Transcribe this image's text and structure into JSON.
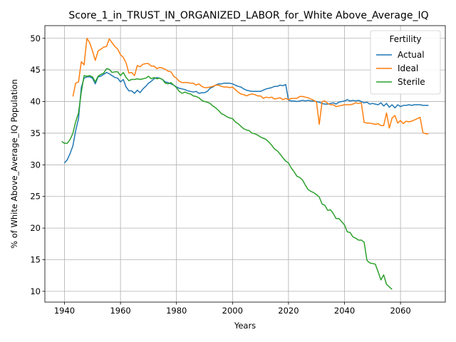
{
  "chart_data": {
    "type": "line",
    "title": "Score_1_in_TRUST_IN_ORGANIZED_LABOR_for_White Above_Average_IQ",
    "xlabel": "Years",
    "ylabel": "% of White Above_Average_IQ Population",
    "xlim": [
      1933,
      2076
    ],
    "ylim": [
      8.3,
      52.0
    ],
    "xticks": [
      1940,
      1960,
      1980,
      2000,
      2020,
      2040,
      2060
    ],
    "yticks": [
      10,
      15,
      20,
      25,
      30,
      35,
      40,
      45,
      50
    ],
    "grid": true,
    "legend": {
      "title": "Fertility",
      "placement": "top-right"
    },
    "series": [
      {
        "name": "Actual",
        "color": "#1f77b4",
        "x": [
          1940,
          1941,
          1942,
          1943,
          1944,
          1945,
          1946,
          1947,
          1948,
          1949,
          1950,
          1951,
          1952,
          1953,
          1954,
          1955,
          1956,
          1957,
          1958,
          1959,
          1960,
          1961,
          1962,
          1963,
          1964,
          1965,
          1966,
          1967,
          1968,
          1969,
          1970,
          1971,
          1972,
          1973,
          1974,
          1975,
          1976,
          1977,
          1978,
          1979,
          1980,
          1981,
          1982,
          1983,
          1984,
          1985,
          1986,
          1987,
          1988,
          1989,
          1990,
          1991,
          1992,
          1993,
          1994,
          1995,
          1996,
          1997,
          1998,
          1999,
          2000,
          2001,
          2002,
          2003,
          2004,
          2005,
          2006,
          2007,
          2008,
          2009,
          2010,
          2011,
          2012,
          2013,
          2014,
          2015,
          2016,
          2017,
          2018,
          2019,
          2020,
          2021,
          2022,
          2023,
          2024,
          2025,
          2026,
          2027,
          2028,
          2029,
          2030,
          2031,
          2032,
          2033,
          2034,
          2035,
          2036,
          2037,
          2038,
          2039,
          2040,
          2041,
          2042,
          2043,
          2044,
          2045,
          2046,
          2047,
          2048,
          2049,
          2050,
          2051,
          2052,
          2053,
          2054,
          2055,
          2056,
          2057,
          2058,
          2059,
          2060,
          2061,
          2062,
          2063,
          2064,
          2065,
          2066,
          2067,
          2068,
          2069,
          2070
        ],
        "values": [
          30.3,
          30.8,
          31.8,
          33.0,
          35.4,
          37.3,
          42.2,
          43.7,
          43.9,
          43.9,
          43.7,
          42.8,
          43.9,
          44.0,
          44.3,
          44.6,
          44.4,
          44.1,
          43.8,
          43.7,
          43.1,
          43.5,
          42.3,
          41.7,
          41.7,
          41.3,
          41.8,
          41.4,
          42.0,
          42.4,
          42.9,
          43.2,
          43.6,
          43.8,
          43.7,
          43.5,
          43.1,
          43.0,
          42.8,
          42.6,
          42.3,
          42.1,
          42.0,
          41.9,
          41.7,
          41.6,
          41.5,
          41.6,
          41.3,
          41.4,
          41.4,
          41.6,
          42.1,
          42.3,
          42.6,
          42.8,
          42.8,
          42.9,
          42.9,
          42.9,
          42.8,
          42.6,
          42.4,
          42.3,
          42.0,
          41.8,
          41.7,
          41.6,
          41.6,
          41.6,
          41.6,
          41.8,
          42.0,
          42.1,
          42.2,
          42.4,
          42.4,
          42.6,
          42.5,
          42.7,
          40.2,
          40.1,
          40.1,
          40.0,
          40.1,
          40.2,
          40.1,
          40.2,
          40.1,
          40.1,
          40.0,
          39.9,
          39.7,
          39.6,
          39.6,
          39.7,
          39.8,
          39.6,
          39.9,
          40.0,
          40.1,
          40.3,
          40.1,
          40.2,
          40.1,
          40.2,
          40.0,
          39.8,
          39.9,
          39.6,
          39.7,
          39.6,
          39.5,
          39.8,
          39.3,
          39.7,
          39.1,
          39.5,
          39.0,
          39.5,
          39.2,
          39.4,
          39.4,
          39.5,
          39.4,
          39.5,
          39.5,
          39.5,
          39.4,
          39.4,
          39.4
        ]
      },
      {
        "name": "Ideal",
        "color": "#ff7f0e",
        "x": [
          1943,
          1944,
          1945,
          1946,
          1947,
          1948,
          1949,
          1950,
          1951,
          1952,
          1953,
          1954,
          1955,
          1956,
          1957,
          1958,
          1959,
          1960,
          1961,
          1962,
          1963,
          1964,
          1965,
          1966,
          1967,
          1968,
          1969,
          1970,
          1971,
          1972,
          1973,
          1974,
          1975,
          1976,
          1977,
          1978,
          1979,
          1980,
          1981,
          1982,
          1983,
          1984,
          1985,
          1986,
          1987,
          1988,
          1989,
          1990,
          1991,
          1992,
          1993,
          1994,
          1995,
          1996,
          1997,
          1998,
          1999,
          2000,
          2001,
          2002,
          2003,
          2004,
          2005,
          2006,
          2007,
          2008,
          2009,
          2010,
          2011,
          2012,
          2013,
          2014,
          2015,
          2016,
          2017,
          2018,
          2019,
          2020,
          2021,
          2022,
          2023,
          2024,
          2025,
          2026,
          2027,
          2028,
          2029,
          2030,
          2031,
          2032,
          2033,
          2034,
          2035,
          2036,
          2037,
          2038,
          2039,
          2040,
          2041,
          2042,
          2043,
          2044,
          2045,
          2046,
          2047,
          2048,
          2049,
          2050,
          2051,
          2052,
          2053,
          2054,
          2055,
          2056,
          2057,
          2058,
          2059,
          2060,
          2061,
          2062,
          2063,
          2064,
          2065,
          2066,
          2067,
          2068,
          2069,
          2070
        ],
        "values": [
          40.8,
          42.9,
          43.1,
          46.3,
          45.8,
          50.0,
          49.3,
          48.0,
          46.5,
          48.0,
          48.3,
          48.6,
          48.7,
          49.9,
          49.3,
          48.7,
          48.3,
          47.4,
          47.0,
          46.1,
          44.5,
          44.6,
          44.1,
          45.7,
          45.5,
          45.9,
          46.0,
          46.0,
          45.6,
          45.6,
          45.2,
          45.4,
          45.3,
          45.1,
          44.8,
          44.7,
          44.0,
          43.7,
          43.2,
          43.0,
          43.0,
          43.0,
          42.9,
          42.9,
          42.6,
          42.8,
          42.4,
          42.2,
          42.2,
          42.3,
          42.4,
          42.6,
          42.6,
          42.4,
          42.3,
          42.3,
          42.2,
          42.3,
          41.9,
          41.5,
          41.2,
          41.1,
          40.9,
          41.1,
          41.2,
          41.1,
          40.9,
          40.9,
          40.5,
          40.7,
          40.6,
          40.7,
          40.4,
          40.5,
          40.6,
          40.3,
          40.5,
          40.3,
          40.5,
          40.5,
          40.5,
          40.8,
          40.8,
          40.7,
          40.6,
          40.4,
          40.2,
          39.9,
          36.4,
          40.0,
          40.1,
          39.7,
          39.5,
          39.5,
          39.2,
          39.3,
          39.4,
          39.5,
          39.5,
          39.5,
          39.6,
          39.8,
          39.7,
          39.8,
          36.7,
          36.6,
          36.6,
          36.5,
          36.4,
          36.5,
          36.2,
          36.2,
          38.2,
          35.8,
          37.4,
          37.8,
          36.6,
          37.0,
          36.5,
          36.9,
          36.8,
          36.9,
          37.1,
          37.3,
          37.5,
          35.1,
          34.9,
          34.9
        ]
      },
      {
        "name": "Sterile",
        "color": "#2ca02c",
        "x": [
          1939,
          1940,
          1941,
          1942,
          1943,
          1944,
          1945,
          1946,
          1947,
          1948,
          1949,
          1950,
          1951,
          1952,
          1953,
          1954,
          1955,
          1956,
          1957,
          1958,
          1959,
          1960,
          1961,
          1962,
          1963,
          1964,
          1965,
          1966,
          1967,
          1968,
          1969,
          1970,
          1971,
          1972,
          1973,
          1974,
          1975,
          1976,
          1977,
          1978,
          1979,
          1980,
          1981,
          1982,
          1983,
          1984,
          1985,
          1986,
          1987,
          1988,
          1989,
          1990,
          1991,
          1992,
          1993,
          1994,
          1995,
          1996,
          1997,
          1998,
          1999,
          2000,
          2001,
          2002,
          2003,
          2004,
          2005,
          2006,
          2007,
          2008,
          2009,
          2010,
          2011,
          2012,
          2013,
          2014,
          2015,
          2016,
          2017,
          2018,
          2019,
          2020,
          2021,
          2022,
          2023,
          2024,
          2025,
          2026,
          2027,
          2028,
          2029,
          2030,
          2031,
          2032,
          2033,
          2034,
          2035,
          2036,
          2037,
          2038,
          2039,
          2040,
          2041,
          2042,
          2043,
          2044,
          2045,
          2046,
          2047,
          2048,
          2049,
          2050,
          2051,
          2052,
          2053,
          2054,
          2055,
          2056,
          2057
        ],
        "values": [
          33.7,
          33.4,
          33.4,
          34.0,
          35.0,
          36.8,
          38.2,
          41.5,
          44.1,
          44.0,
          44.1,
          43.9,
          43.1,
          44.0,
          44.3,
          44.5,
          45.2,
          45.1,
          44.6,
          44.7,
          44.7,
          44.1,
          44.6,
          43.8,
          43.3,
          43.5,
          43.5,
          43.6,
          43.5,
          43.6,
          43.7,
          44.0,
          43.6,
          43.8,
          43.6,
          43.7,
          43.5,
          42.9,
          42.8,
          43.0,
          42.6,
          42.2,
          41.6,
          41.3,
          41.5,
          41.3,
          41.2,
          40.9,
          40.8,
          40.6,
          40.2,
          40.0,
          39.9,
          39.7,
          39.3,
          39.0,
          38.6,
          38.1,
          37.9,
          37.6,
          37.4,
          37.3,
          36.8,
          36.5,
          36.1,
          35.7,
          35.5,
          35.4,
          35.0,
          34.9,
          34.7,
          34.4,
          34.2,
          34.0,
          33.6,
          33.1,
          32.5,
          32.2,
          31.7,
          31.1,
          30.6,
          30.3,
          29.5,
          28.9,
          28.2,
          28.0,
          27.6,
          26.8,
          26.1,
          25.8,
          25.6,
          25.3,
          24.9,
          23.8,
          23.6,
          22.8,
          22.9,
          22.3,
          21.5,
          21.5,
          21.0,
          20.5,
          19.4,
          19.3,
          18.6,
          18.4,
          18.1,
          18.1,
          17.8,
          14.9,
          14.5,
          14.4,
          14.3,
          13.1,
          11.8,
          12.6,
          11.1,
          10.7,
          10.3
        ]
      }
    ]
  }
}
